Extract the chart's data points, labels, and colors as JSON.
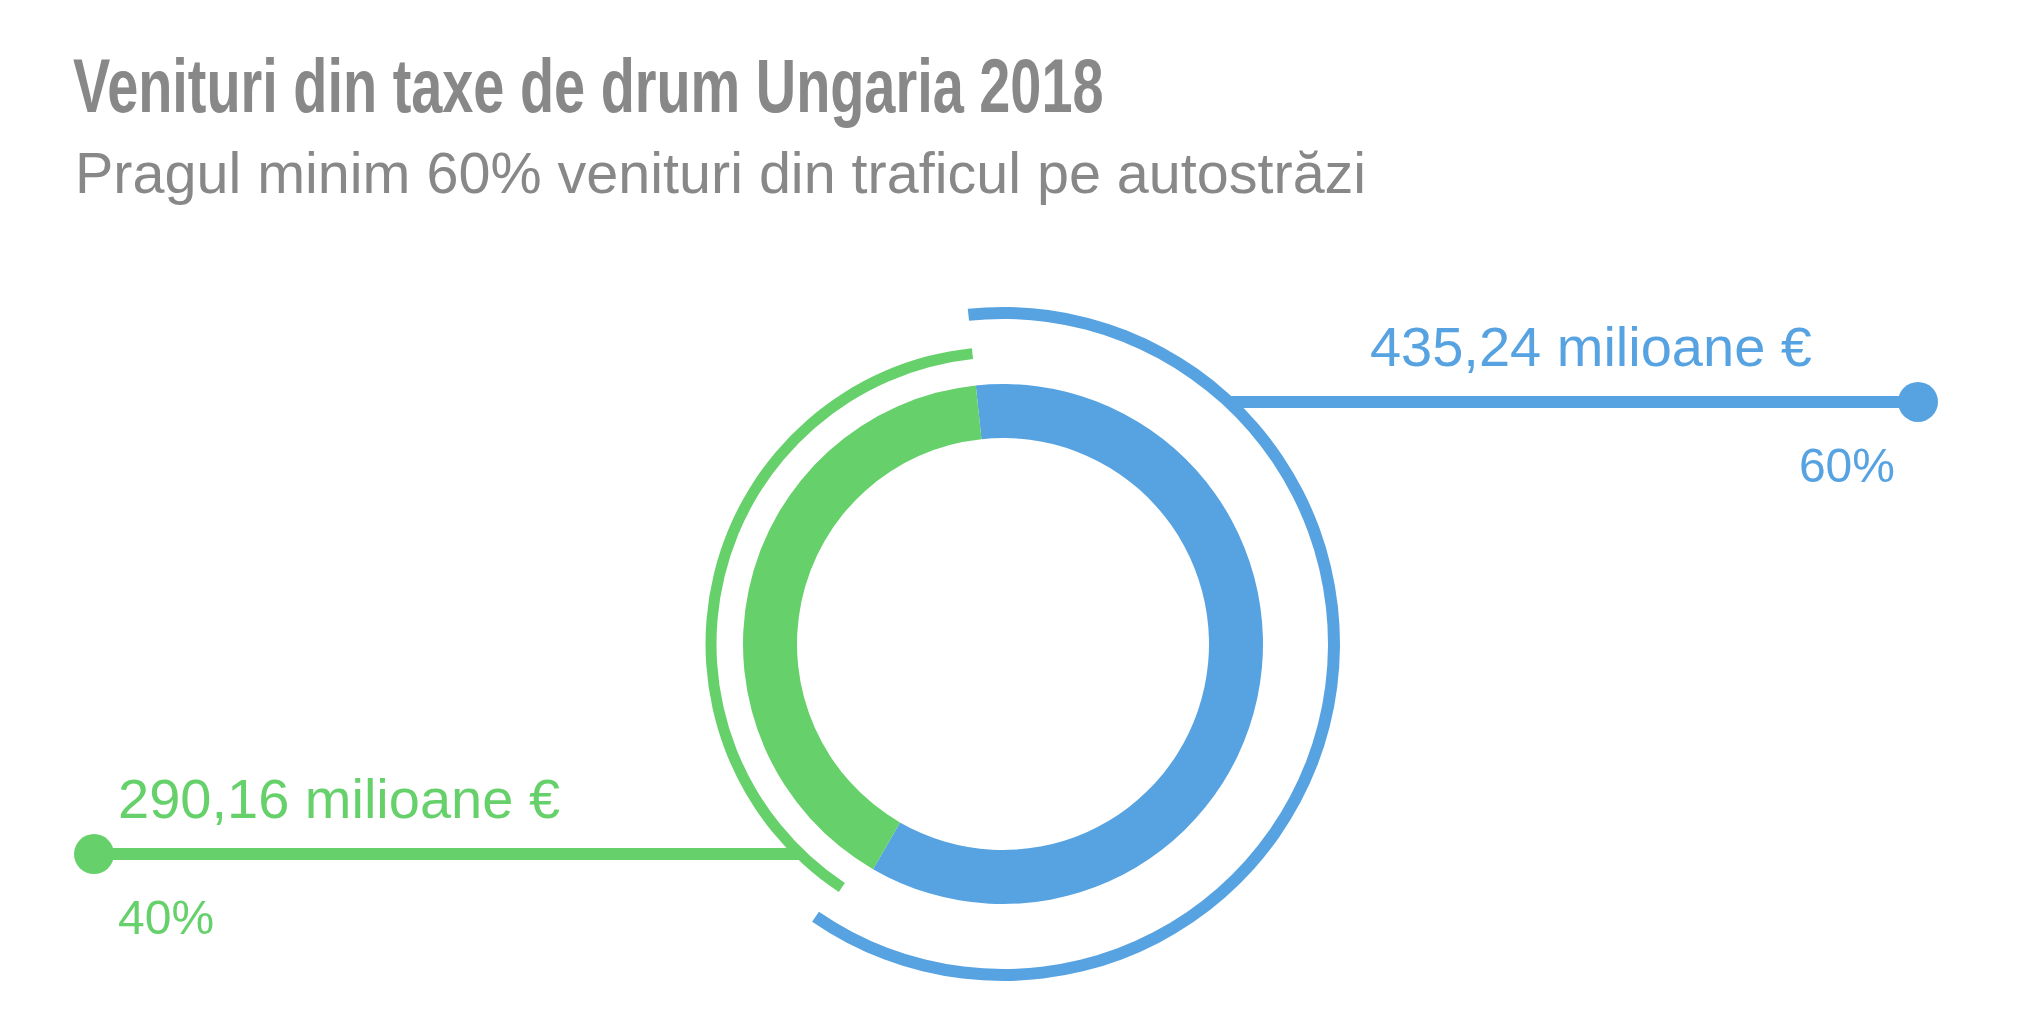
{
  "chart_data": {
    "type": "donut",
    "title": "Venituri din taxe de drum Ungaria 2018",
    "subtitle": "Pragul minim 60% venituri din traficul pe autostrăzi",
    "categories": [
      null,
      null
    ],
    "values": [
      435.24,
      290.16
    ],
    "colors": [
      "#57a3e1",
      "#66d16b"
    ],
    "value_labels": [
      "435,24 milioane €",
      "290,16 milioane €"
    ],
    "annotations": [
      "60%",
      "40%"
    ]
  }
}
